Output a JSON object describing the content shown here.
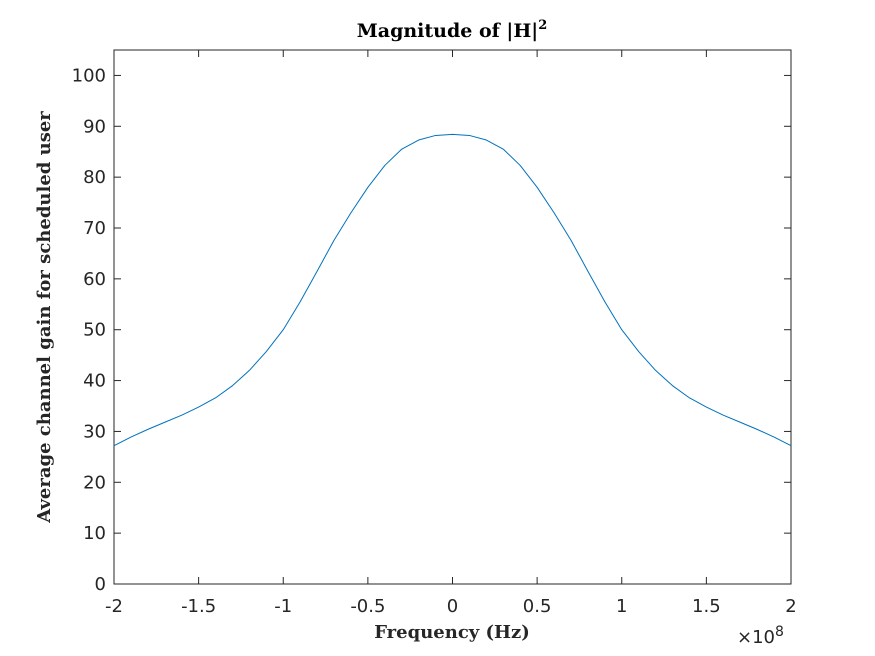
{
  "chart_data": {
    "type": "line",
    "title": "Magnitude of |H|",
    "title_superscript": "2",
    "xlabel": "Frequency (Hz)",
    "ylabel": "Average channel gain for scheduled user",
    "x_exponent_label": "×10",
    "x_exponent_power": "8",
    "xlim": [
      -2,
      2
    ],
    "ylim": [
      0,
      105
    ],
    "x_ticks": [
      -2,
      -1.5,
      -1,
      -0.5,
      0,
      0.5,
      1,
      1.5,
      2
    ],
    "x_tick_labels": [
      "-2",
      "-1.5",
      "-1",
      "-0.5",
      "0",
      "0.5",
      "1",
      "1.5",
      "2"
    ],
    "y_ticks": [
      0,
      10,
      20,
      30,
      40,
      50,
      60,
      70,
      80,
      90,
      100
    ],
    "y_tick_labels": [
      "0",
      "10",
      "20",
      "30",
      "40",
      "50",
      "60",
      "70",
      "80",
      "90",
      "100"
    ],
    "grid": false,
    "series": [
      {
        "color": "#0072BD",
        "x": [
          -2.0,
          -1.9,
          -1.8,
          -1.7,
          -1.6,
          -1.5,
          -1.4,
          -1.3,
          -1.2,
          -1.1,
          -1.0,
          -0.9,
          -0.8,
          -0.7,
          -0.6,
          -0.5,
          -0.4,
          -0.3,
          -0.2,
          -0.1,
          0.0,
          0.1,
          0.2,
          0.3,
          0.4,
          0.5,
          0.6,
          0.7,
          0.8,
          0.9,
          1.0,
          1.1,
          1.2,
          1.3,
          1.4,
          1.5,
          1.6,
          1.7,
          1.8,
          1.9,
          2.0
        ],
        "y": [
          27.2,
          28.9,
          30.4,
          31.8,
          33.2,
          34.8,
          36.6,
          39.0,
          42.0,
          45.7,
          50.0,
          55.5,
          61.5,
          67.6,
          73.0,
          78.0,
          82.3,
          85.5,
          87.3,
          88.2,
          88.4,
          88.2,
          87.3,
          85.5,
          82.3,
          78.0,
          73.0,
          67.6,
          61.5,
          55.5,
          50.0,
          45.7,
          42.0,
          39.0,
          36.6,
          34.8,
          33.2,
          31.8,
          30.4,
          28.9,
          27.2
        ]
      }
    ]
  }
}
